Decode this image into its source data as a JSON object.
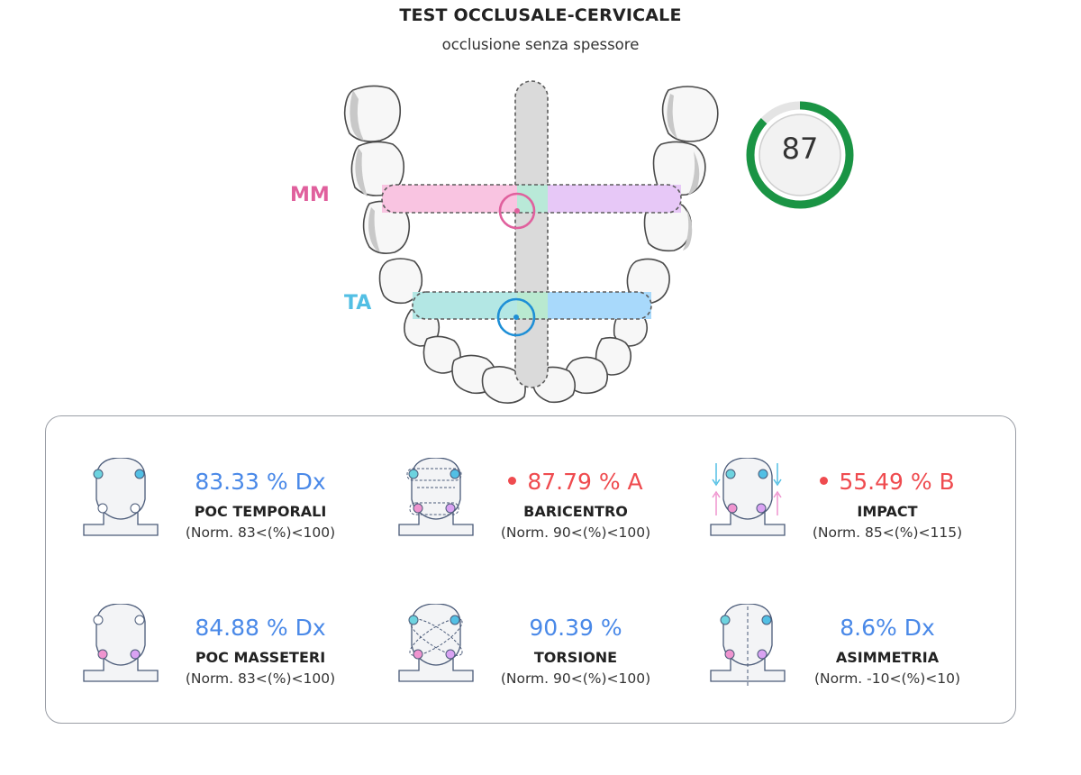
{
  "header": {
    "title": "TEST OCCLUSALE-CERVICALE",
    "subtitle": "occlusione senza spessore"
  },
  "jaw": {
    "labels": {
      "mm": "MM",
      "ta": "TA"
    },
    "colors": {
      "mm_left": "#f9c4e1",
      "mm_right": "#e7c8f7",
      "ta_left": "#b3e7e4",
      "ta_right": "#a8d9fb",
      "mm_ring": "#e0609d",
      "ta_ring": "#1e8fd6",
      "center_bar": "#dadada"
    }
  },
  "score": {
    "value": "87",
    "fraction": 0.87,
    "ring_color": "#1a9444",
    "track_color": "#e4e4e4"
  },
  "metrics": [
    {
      "id": "poc-temporali",
      "value": "83.33 % Dx",
      "name": "POC TEMPORALI",
      "norm": "(Norm. 83<(%)<100)",
      "alert": false,
      "icon": "head-temporal-points-icon"
    },
    {
      "id": "baricentro",
      "value": "87.79 % A",
      "name": "BARICENTRO",
      "norm": "(Norm. 90<(%)<100)",
      "alert": true,
      "icon": "head-barycenter-icon"
    },
    {
      "id": "impact",
      "value": "55.49 % B",
      "name": "IMPACT",
      "norm": "(Norm. 85<(%)<115)",
      "alert": true,
      "icon": "head-impact-arrows-icon"
    },
    {
      "id": "poc-masseteri",
      "value": "84.88 % Dx",
      "name": "POC MASSETERI",
      "norm": "(Norm. 83<(%)<100)",
      "alert": false,
      "icon": "head-masseter-points-icon"
    },
    {
      "id": "torsione",
      "value": "90.39 %",
      "name": "TORSIONE",
      "norm": "(Norm. 90<(%)<100)",
      "alert": false,
      "icon": "head-torsion-icon"
    },
    {
      "id": "asimmetria",
      "value": "8.6% Dx",
      "name": "ASIMMETRIA",
      "norm": "(Norm. -10<(%)<10)",
      "alert": false,
      "icon": "head-asymmetry-icon"
    }
  ],
  "colors": {
    "normal_value": "#4a89e8",
    "alert_value": "#ef4b4f",
    "temporal_point": "#6dd3df",
    "masseter_point": "#ef94cf",
    "masseter_point_right": "#d9a2f2"
  }
}
